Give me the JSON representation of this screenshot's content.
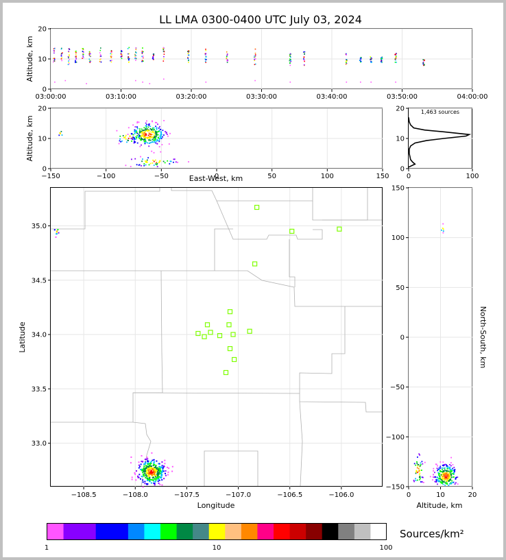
{
  "title": "LL LMA 0300-0400 UTC July 03, 2024",
  "colors": {
    "frame": "#c0c0c0",
    "station_marker": "#7fff00",
    "boundary": "#b0b0b0",
    "grid": "#e6e6e6",
    "profile_line": "#000000"
  },
  "chart_data": [
    {
      "id": "time-altitude",
      "type": "scatter",
      "ylabel": "Altitude, km",
      "ylim": [
        0,
        20
      ],
      "yticks": [
        0,
        10,
        20
      ],
      "xticks": [
        "03:00:00",
        "03:10:00",
        "03:20:00",
        "03:30:00",
        "03:40:00",
        "03:50:00",
        "04:00:00"
      ],
      "xlim_minutes": [
        0,
        60
      ],
      "grid": true,
      "clusters": [
        {
          "t_min": 0.4,
          "alt": [
            9,
            14
          ]
        },
        {
          "t_min": 1.5,
          "alt": [
            9,
            14
          ]
        },
        {
          "t_min": 2.5,
          "alt": [
            8,
            15
          ]
        },
        {
          "t_min": 3.5,
          "alt": [
            9,
            13
          ]
        },
        {
          "t_min": 4.5,
          "alt": [
            9,
            14
          ]
        },
        {
          "t_min": 5.5,
          "alt": [
            9,
            13
          ]
        },
        {
          "t_min": 7.0,
          "alt": [
            9,
            14
          ]
        },
        {
          "t_min": 8.5,
          "alt": [
            9,
            14
          ]
        },
        {
          "t_min": 10.0,
          "alt": [
            10,
            13
          ]
        },
        {
          "t_min": 11.0,
          "alt": [
            9,
            14
          ]
        },
        {
          "t_min": 12.0,
          "alt": [
            9,
            14
          ]
        },
        {
          "t_min": 13.0,
          "alt": [
            9,
            14
          ]
        },
        {
          "t_min": 14.5,
          "alt": [
            10,
            12
          ]
        },
        {
          "t_min": 16.0,
          "alt": [
            9,
            14
          ]
        },
        {
          "t_min": 19.5,
          "alt": [
            9,
            13
          ]
        },
        {
          "t_min": 22.0,
          "alt": [
            9,
            14
          ]
        },
        {
          "t_min": 25.0,
          "alt": [
            9,
            13
          ]
        },
        {
          "t_min": 29.0,
          "alt": [
            8,
            14
          ]
        },
        {
          "t_min": 34.0,
          "alt": [
            8,
            12
          ]
        },
        {
          "t_min": 36.0,
          "alt": [
            8,
            13
          ]
        },
        {
          "t_min": 42.0,
          "alt": [
            8,
            12
          ]
        },
        {
          "t_min": 44.0,
          "alt": [
            9,
            11
          ]
        },
        {
          "t_min": 45.5,
          "alt": [
            9,
            11
          ]
        },
        {
          "t_min": 47.0,
          "alt": [
            9,
            11
          ]
        },
        {
          "t_min": 49.0,
          "alt": [
            9,
            12
          ]
        },
        {
          "t_min": 53.0,
          "alt": [
            8,
            10
          ]
        }
      ],
      "low_sources": [
        {
          "t_min": 0.5,
          "alt": 2.5
        },
        {
          "t_min": 2.0,
          "alt": 3.0
        },
        {
          "t_min": 5.0,
          "alt": 2.0
        },
        {
          "t_min": 12.0,
          "alt": 3.0
        },
        {
          "t_min": 13.0,
          "alt": 2.5
        },
        {
          "t_min": 14.0,
          "alt": 2.0
        },
        {
          "t_min": 16.0,
          "alt": 3.5
        },
        {
          "t_min": 22.0,
          "alt": 2.5
        },
        {
          "t_min": 29.0,
          "alt": 3.0
        },
        {
          "t_min": 34.0,
          "alt": 2.5
        },
        {
          "t_min": 42.0,
          "alt": 2.5
        },
        {
          "t_min": 44.0,
          "alt": 2.5
        },
        {
          "t_min": 45.5,
          "alt": 2.5
        },
        {
          "t_min": 49.0,
          "alt": 2.5
        }
      ]
    },
    {
      "id": "east-west-altitude",
      "type": "heatmap",
      "xlabel": "East-West, km",
      "ylabel": "Altitude, km",
      "xlim": [
        -150,
        150
      ],
      "xticks": [
        -150,
        -100,
        -50,
        0,
        50,
        100,
        150
      ],
      "ylim": [
        0,
        20
      ],
      "yticks": [
        0,
        10,
        20
      ],
      "clusters": [
        {
          "x": -63,
          "y": 11.5,
          "sx": 8,
          "sy": 1.8,
          "n": 280
        },
        {
          "x": -58,
          "y": 2.5,
          "sx": 10,
          "sy": 0.8,
          "n": 50
        },
        {
          "x": -80,
          "y": 10.5,
          "sx": 6,
          "sy": 1.0,
          "n": 30
        },
        {
          "x": -141,
          "y": 12,
          "sx": 2,
          "sy": 0.5,
          "n": 6
        }
      ]
    },
    {
      "id": "altitude-histogram",
      "type": "line",
      "annotation": "1,463 sources",
      "xlim": [
        0,
        100
      ],
      "xticks": [
        0,
        100
      ],
      "ylim": [
        0,
        20
      ],
      "yticks": [
        0,
        10,
        20
      ],
      "profile": [
        {
          "count": 0,
          "alt": 0.5
        },
        {
          "count": 10,
          "alt": 1.5
        },
        {
          "count": 6,
          "alt": 2.2
        },
        {
          "count": 3,
          "alt": 3.0
        },
        {
          "count": 2,
          "alt": 4.0
        },
        {
          "count": 1,
          "alt": 5.0
        },
        {
          "count": 1,
          "alt": 6.5
        },
        {
          "count": 3,
          "alt": 7.5
        },
        {
          "count": 10,
          "alt": 8.5
        },
        {
          "count": 28,
          "alt": 9.3
        },
        {
          "count": 55,
          "alt": 10.0
        },
        {
          "count": 90,
          "alt": 10.8
        },
        {
          "count": 95,
          "alt": 11.3
        },
        {
          "count": 55,
          "alt": 12.2
        },
        {
          "count": 25,
          "alt": 12.8
        },
        {
          "count": 8,
          "alt": 13.5
        },
        {
          "count": 3,
          "alt": 14.5
        },
        {
          "count": 1,
          "alt": 15.5
        },
        {
          "count": 0,
          "alt": 17.0
        }
      ]
    },
    {
      "id": "plan-view",
      "type": "heatmap",
      "xlabel": "Longitude",
      "ylabel": "Latitude",
      "xlim": [
        -108.82,
        -105.6
      ],
      "xticks": [
        -108.5,
        -108.0,
        -107.5,
        -107.0,
        -106.5,
        -106.0
      ],
      "xtick_labels": [
        "−108.5",
        "−108.0",
        "−107.5",
        "−107.0",
        "−106.5",
        "−106.0"
      ],
      "ylim": [
        32.6,
        35.35
      ],
      "yticks": [
        33.0,
        33.5,
        34.0,
        34.5,
        35.0
      ],
      "ytick_labels": [
        "33.0",
        "33.5",
        "34.0",
        "34.5",
        "35.0"
      ],
      "stations": [
        {
          "lon": -106.82,
          "lat": 35.17
        },
        {
          "lon": -106.48,
          "lat": 34.95
        },
        {
          "lon": -106.02,
          "lat": 34.97
        },
        {
          "lon": -106.84,
          "lat": 34.65
        },
        {
          "lon": -107.08,
          "lat": 34.21
        },
        {
          "lon": -107.3,
          "lat": 34.09
        },
        {
          "lon": -107.09,
          "lat": 34.09
        },
        {
          "lon": -107.39,
          "lat": 34.01
        },
        {
          "lon": -107.27,
          "lat": 34.02
        },
        {
          "lon": -107.33,
          "lat": 33.98
        },
        {
          "lon": -107.18,
          "lat": 33.99
        },
        {
          "lon": -107.05,
          "lat": 34.0
        },
        {
          "lon": -106.89,
          "lat": 34.03
        },
        {
          "lon": -107.08,
          "lat": 33.87
        },
        {
          "lon": -107.04,
          "lat": 33.77
        },
        {
          "lon": -107.12,
          "lat": 33.65
        }
      ],
      "clusters": [
        {
          "lon": -107.85,
          "lat": 32.74,
          "slon": 0.07,
          "slat": 0.06,
          "n": 320
        },
        {
          "lon": -108.77,
          "lat": 34.96,
          "slon": 0.01,
          "slat": 0.02,
          "n": 8
        }
      ]
    },
    {
      "id": "altitude-north-south",
      "type": "heatmap",
      "xlabel": "Altitude, km",
      "ylabel": "North-South, km",
      "xlim": [
        0,
        20
      ],
      "xticks": [
        0,
        10,
        20
      ],
      "ylim": [
        -150,
        150
      ],
      "yticks": [
        -150,
        -100,
        -50,
        0,
        50,
        100,
        150
      ],
      "ytick_labels": [
        "−150",
        "−100",
        "−50",
        "0",
        "50",
        "100",
        "150"
      ],
      "clusters": [
        {
          "alt": 11.5,
          "ns": -139,
          "salt": 1.8,
          "sns": 6,
          "n": 280
        },
        {
          "alt": 2.8,
          "ns": -134,
          "salt": 0.8,
          "sns": 8,
          "n": 50
        },
        {
          "alt": 11.0,
          "ns": 110,
          "salt": 0.8,
          "sns": 2,
          "n": 6
        }
      ]
    }
  ],
  "colorbar": {
    "label": "Sources/km²",
    "tick_labels": [
      "1",
      "10",
      "100"
    ],
    "colors": [
      "#ff55ff",
      "#8800ff",
      "#8800ff",
      "#0000ff",
      "#0000ff",
      "#0088ff",
      "#00ffff",
      "#00ff00",
      "#008844",
      "#448888",
      "#ffff00",
      "#ffc080",
      "#ff8800",
      "#ff0088",
      "#ff0000",
      "#cc0000",
      "#880000",
      "#000000",
      "#808080",
      "#c0c0c0",
      "#ffffff"
    ]
  }
}
